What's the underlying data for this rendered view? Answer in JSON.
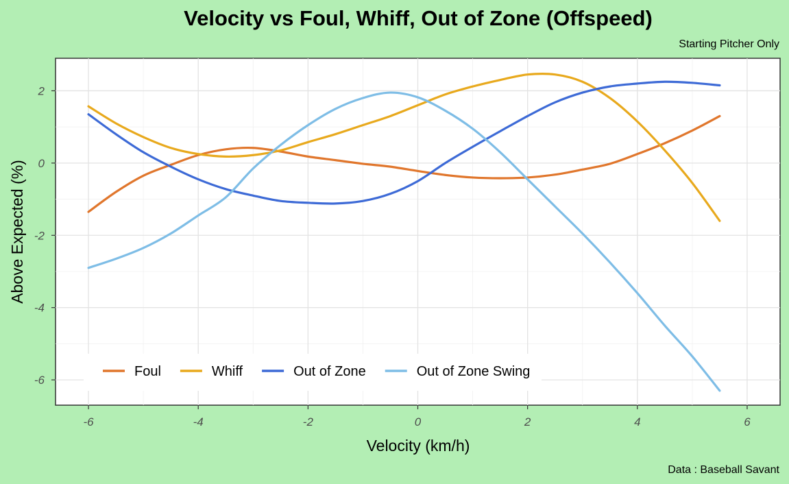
{
  "chart_data": {
    "type": "line",
    "title": "Velocity vs Foul, Whiff, Out of Zone (Offspeed)",
    "subtitle": "Starting Pitcher Only",
    "caption": "Data : Baseball Savant",
    "xlabel": "Velocity (km/h)",
    "ylabel": "Above Expected (%)",
    "xlim": [
      -6.6,
      6.6
    ],
    "ylim": [
      -6.7,
      2.9
    ],
    "xticks": [
      -6,
      -4,
      -2,
      0,
      2,
      4,
      6
    ],
    "yticks": [
      -6,
      -4,
      -2,
      0,
      2
    ],
    "xtick_labels": [
      "-6",
      "-4",
      "-2",
      "0",
      "2",
      "4",
      "6"
    ],
    "ytick_labels": [
      "-6",
      "-4",
      "-2",
      "0",
      "2"
    ],
    "grid": true,
    "legend_position": "bottom-left inside",
    "x": [
      -6,
      -5.5,
      -5,
      -4.5,
      -4,
      -3.5,
      -3,
      -2.5,
      -2,
      -1.5,
      -1,
      -0.5,
      0,
      0.5,
      1,
      1.5,
      2,
      2.5,
      3,
      3.5,
      4,
      4.5,
      5,
      5.5
    ],
    "series": [
      {
        "name": "Foul",
        "color": "#e0762c",
        "values": [
          -1.35,
          -0.8,
          -0.35,
          -0.05,
          0.22,
          0.38,
          0.42,
          0.32,
          0.18,
          0.08,
          -0.02,
          -0.1,
          -0.22,
          -0.33,
          -0.4,
          -0.42,
          -0.4,
          -0.32,
          -0.18,
          -0.02,
          0.25,
          0.55,
          0.9,
          1.3
        ]
      },
      {
        "name": "Whiff",
        "color": "#e8a91d",
        "values": [
          1.57,
          1.1,
          0.72,
          0.42,
          0.25,
          0.18,
          0.22,
          0.35,
          0.58,
          0.8,
          1.05,
          1.3,
          1.6,
          1.9,
          2.12,
          2.3,
          2.45,
          2.45,
          2.25,
          1.8,
          1.15,
          0.35,
          -0.55,
          -1.6
        ]
      },
      {
        "name": "Out of Zone",
        "color": "#3d6ad6",
        "values": [
          1.35,
          0.8,
          0.3,
          -0.1,
          -0.45,
          -0.72,
          -0.9,
          -1.05,
          -1.1,
          -1.12,
          -1.05,
          -0.85,
          -0.5,
          0,
          0.45,
          0.88,
          1.3,
          1.68,
          1.95,
          2.12,
          2.2,
          2.25,
          2.22,
          2.15
        ]
      },
      {
        "name": "Out of Zone Swing",
        "color": "#7ebde6",
        "values": [
          -2.9,
          -2.65,
          -2.35,
          -1.95,
          -1.45,
          -0.95,
          -0.15,
          0.5,
          1.05,
          1.5,
          1.8,
          1.95,
          1.82,
          1.45,
          0.95,
          0.3,
          -0.45,
          -1.2,
          -1.95,
          -2.75,
          -3.6,
          -4.5,
          -5.35,
          -6.3
        ]
      }
    ]
  }
}
